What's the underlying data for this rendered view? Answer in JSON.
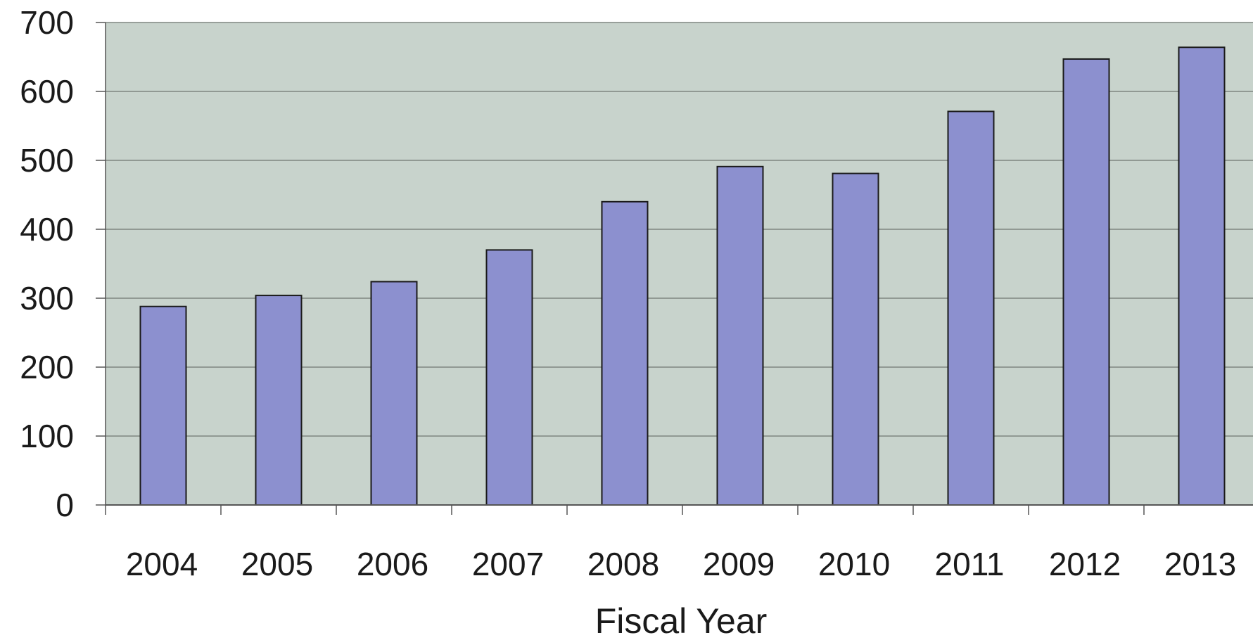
{
  "chart_data": {
    "type": "bar",
    "categories": [
      "2004",
      "2005",
      "2006",
      "2007",
      "2008",
      "2009",
      "2010",
      "2011",
      "2012",
      "2013"
    ],
    "values": [
      288,
      304,
      324,
      370,
      440,
      491,
      481,
      571,
      647,
      664
    ],
    "title": "",
    "xlabel": "Fiscal Year",
    "ylabel": "",
    "ylim": [
      0,
      700
    ],
    "yticks": [
      "0",
      "100",
      "200",
      "300",
      "400",
      "500",
      "600",
      "700"
    ],
    "grid": true,
    "legend": "none"
  },
  "colors": {
    "plot_background": "#c8d3cc",
    "bar_fill": "#8c90cf",
    "bar_stroke": "#1a1a1a",
    "gridline": "#7f8680",
    "axis": "#555555",
    "text": "#1a1a1a"
  }
}
